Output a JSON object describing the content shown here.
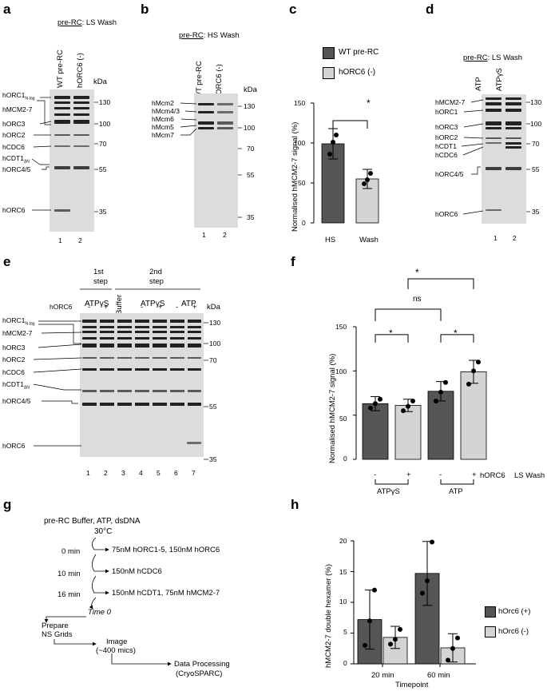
{
  "panels": {
    "a": {
      "label": "a",
      "title_pre": "pre-RC",
      "title_rest": ": LS Wash",
      "lanes": [
        "WT pre-RC",
        "hORC6 (-)"
      ],
      "lane_numbers": [
        "1",
        "2"
      ],
      "kda": "kDa",
      "markers": [
        "130",
        "100",
        "70",
        "55",
        "35"
      ],
      "proteins": [
        {
          "name": "hORC1",
          "sub": "N-tag"
        },
        {
          "name": "hMCM2-7",
          "sub": ""
        },
        {
          "name": "hORC3",
          "sub": ""
        },
        {
          "name": "hORC2",
          "sub": ""
        },
        {
          "name": "hCDC6",
          "sub": ""
        },
        {
          "name": "hCDT1",
          "sub": "ΔN"
        },
        {
          "name": "hORC4/5",
          "sub": ""
        },
        {
          "name": "hORC6",
          "sub": ""
        }
      ]
    },
    "b": {
      "label": "b",
      "title_pre": "pre-RC",
      "title_rest": ": HS Wash",
      "lanes": [
        "WT pre-RC",
        "hORC6 (-)"
      ],
      "lane_numbers": [
        "1",
        "2"
      ],
      "kda": "kDa",
      "markers": [
        "130",
        "100",
        "70",
        "55",
        "35"
      ],
      "proteins": [
        "hMcm2",
        "hMcm4/3",
        "hMcm6",
        "hMcm5",
        "hMcm7"
      ]
    },
    "c": {
      "label": "c",
      "legend": [
        "WT pre-RC",
        "hORC6 (-)"
      ],
      "ylabel": "Normalised hMCM2-7 signal (%)",
      "yticks": [
        "0",
        "50",
        "100",
        "150"
      ],
      "xlabels": [
        "HS",
        "Wash"
      ],
      "sig": "*",
      "colors": {
        "wt": "#555555",
        "minus": "#d4d4d4"
      }
    },
    "d": {
      "label": "d",
      "title_pre": "pre-RC",
      "title_rest": ": LS Wash",
      "lanes": [
        "ATP",
        "ATPγS"
      ],
      "lane_numbers": [
        "1",
        "2"
      ],
      "markers": [
        "130",
        "100",
        "70",
        "55",
        "35"
      ],
      "proteins": [
        "hMCM2-7",
        "hORC1",
        "hORC3",
        "hORC2",
        "hCDT1",
        "hCDC6",
        "hORC4/5",
        "hORC6"
      ]
    },
    "e": {
      "label": "e",
      "step1": [
        "1st",
        "step"
      ],
      "step2": [
        "2nd",
        "step"
      ],
      "cond": [
        "ATPγS",
        "Buffer",
        "ATPγS",
        "ATP"
      ],
      "horc6": "hORC6",
      "signs": [
        "-",
        "+"
      ],
      "kda": "kDa",
      "lane_numbers": [
        "1",
        "2",
        "3",
        "4",
        "5",
        "6",
        "7"
      ],
      "markers": [
        "130",
        "100",
        "70",
        "55",
        "35"
      ],
      "proteins": [
        {
          "name": "hORC1",
          "sub": "N-tag"
        },
        {
          "name": "hMCM2-7",
          "sub": ""
        },
        {
          "name": "hORC3",
          "sub": ""
        },
        {
          "name": "hORC2",
          "sub": ""
        },
        {
          "name": "hCDC6",
          "sub": ""
        },
        {
          "name": "hCDT1",
          "sub": "ΔN"
        },
        {
          "name": "hORC4/5",
          "sub": ""
        },
        {
          "name": "hORC6",
          "sub": ""
        }
      ]
    },
    "f": {
      "label": "f",
      "ylabel": "Normalised hMCM2-7 signal (%)",
      "yticks": [
        "0",
        "50",
        "100",
        "150"
      ],
      "signs": [
        "-",
        "+",
        "-",
        "+"
      ],
      "horc6": "hORC6",
      "lswash": "LS Wash",
      "groups": [
        "ATPγS",
        "ATP"
      ],
      "sig_star": "*",
      "sig_ns": "ns"
    },
    "g": {
      "label": "g",
      "header": "pre-RC Buffer, ATP, dsDNA",
      "temp": "30°C",
      "times": [
        "0 min",
        "10 min",
        "16 min"
      ],
      "adds": [
        "75nM hORC1-5, 150nM hORC6",
        "150nM hCDC6",
        "150nM hCDT1, 75nM hMCM2-7"
      ],
      "time0": "Time 0",
      "prepare": [
        "Prepare",
        "NS Grids"
      ],
      "image": [
        "Image",
        "(~400 mics)"
      ],
      "processing": [
        "Data Processing",
        "(CryoSPARC)"
      ]
    },
    "h": {
      "label": "h",
      "ylabel": "hMCM2-7 double hexamer (%)",
      "yticks": [
        "0",
        "5",
        "10",
        "15",
        "20"
      ],
      "xlabels": [
        "20 min",
        "60 min"
      ],
      "xtitle": "Timepoint",
      "legend": [
        "hOrc6 (+)",
        "hOrc6 (-)"
      ]
    }
  },
  "chart_data": [
    {
      "type": "bar",
      "categories": [
        "HS",
        "Wash"
      ],
      "values": [
        99,
        55
      ],
      "errors": [
        19,
        12
      ],
      "points": [
        [
          86,
          101,
          110
        ],
        [
          49,
          54,
          62
        ]
      ],
      "ylabel": "Normalised hMCM2-7 signal (%)",
      "ylim": [
        0,
        150
      ],
      "legend": [
        "WT pre-RC",
        "hORC6 (-)"
      ],
      "legend_placement": "top"
    },
    {
      "type": "bar",
      "categories": [
        "ATPγS -",
        "ATPγS +",
        "ATP -",
        "ATP +"
      ],
      "values": [
        63,
        61,
        77,
        99
      ],
      "errors": [
        8,
        7,
        11,
        13
      ],
      "points": [
        [
          58,
          63,
          68
        ],
        [
          55,
          60,
          66
        ],
        [
          66,
          76,
          87
        ],
        [
          85,
          100,
          110
        ]
      ],
      "ylabel": "Normalised hMCM2-7 signal (%)",
      "ylim": [
        0,
        150
      ]
    },
    {
      "type": "bar",
      "categories": [
        "20 min",
        "60 min"
      ],
      "series": [
        {
          "name": "hOrc6 (+)",
          "values": [
            7.2,
            14.7
          ],
          "errors": [
            4.8,
            5.2
          ],
          "points": [
            [
              3.0,
              7.0,
              12.0
            ],
            [
              11.5,
              13.5,
              19.8
            ]
          ]
        },
        {
          "name": "hOrc6 (-)",
          "values": [
            4.3,
            2.6
          ],
          "errors": [
            1.8,
            2.3
          ],
          "points": [
            [
              3.2,
              4.0,
              5.6
            ],
            [
              0.6,
              2.5,
              4.2
            ]
          ]
        }
      ],
      "xlabel": "Timepoint",
      "ylabel": "hMCM2-7 double hexamer (%)",
      "ylim": [
        0,
        20
      ],
      "legend_placement": "right"
    }
  ]
}
